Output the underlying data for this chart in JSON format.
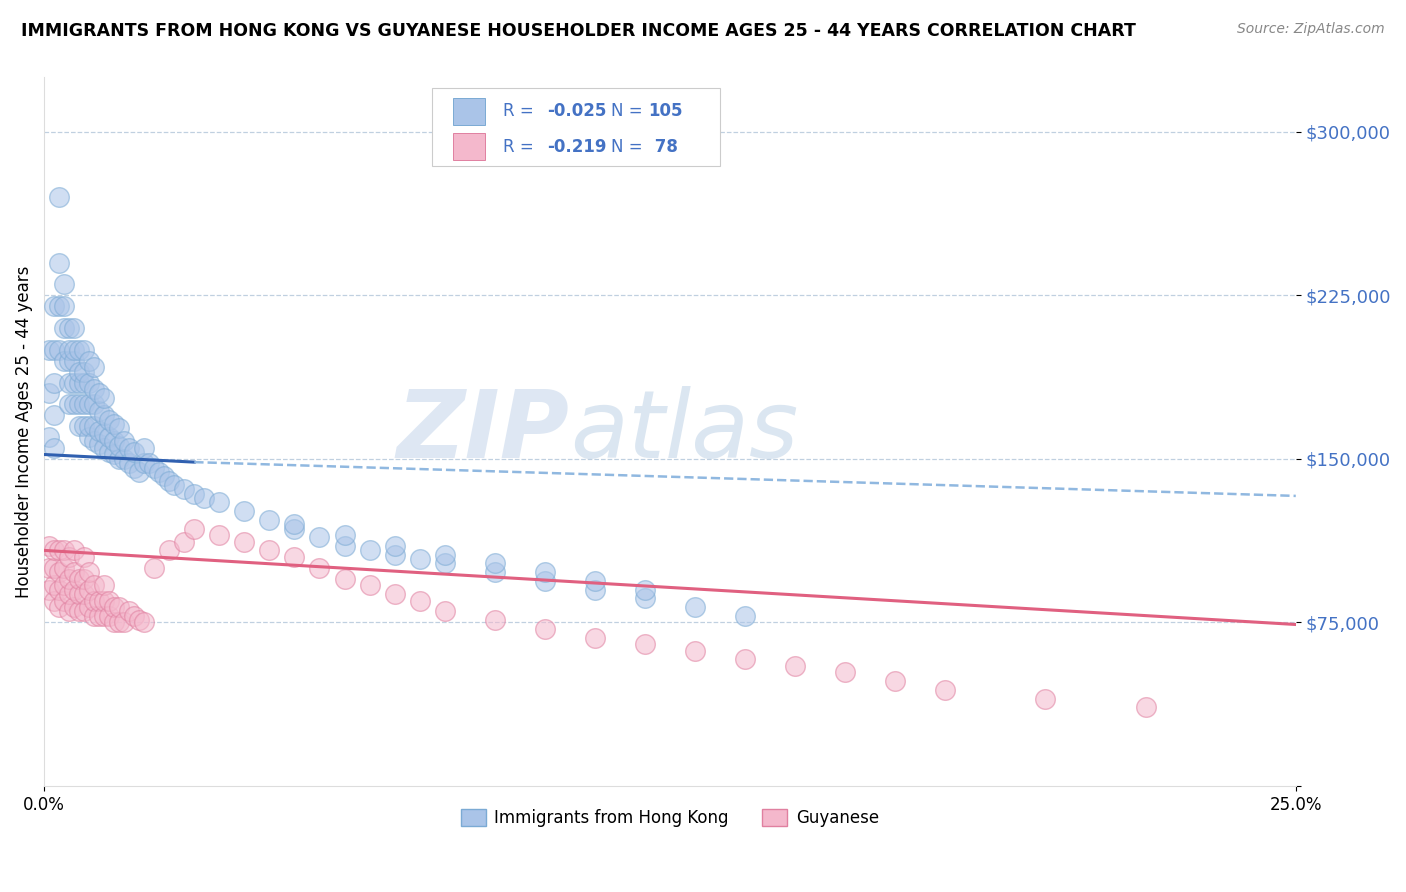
{
  "title": "IMMIGRANTS FROM HONG KONG VS GUYANESE HOUSEHOLDER INCOME AGES 25 - 44 YEARS CORRELATION CHART",
  "source": "Source: ZipAtlas.com",
  "ylabel": "Householder Income Ages 25 - 44 years",
  "xlim": [
    0.0,
    0.25
  ],
  "ylim": [
    0,
    325000
  ],
  "yticks": [
    0,
    75000,
    150000,
    225000,
    300000
  ],
  "ytick_labels": [
    "",
    "$75,000",
    "$150,000",
    "$225,000",
    "$300,000"
  ],
  "watermark_zip": "ZIP",
  "watermark_atlas": "atlas",
  "legend_text_color": "#4472c4",
  "series1_color": "#aac4e8",
  "series1_edge": "#7baad4",
  "series2_color": "#f4b8cc",
  "series2_edge": "#e080a0",
  "trendline1_solid_color": "#3060b0",
  "trendline1_dash_color": "#90b8e0",
  "trendline2_color": "#e06080",
  "grid_color": "#c0d0e0",
  "background_color": "#ffffff",
  "hk_x": [
    0.001,
    0.001,
    0.001,
    0.002,
    0.002,
    0.002,
    0.002,
    0.002,
    0.003,
    0.003,
    0.003,
    0.003,
    0.004,
    0.004,
    0.004,
    0.004,
    0.005,
    0.005,
    0.005,
    0.005,
    0.005,
    0.006,
    0.006,
    0.006,
    0.006,
    0.006,
    0.007,
    0.007,
    0.007,
    0.007,
    0.007,
    0.008,
    0.008,
    0.008,
    0.008,
    0.008,
    0.009,
    0.009,
    0.009,
    0.009,
    0.009,
    0.01,
    0.01,
    0.01,
    0.01,
    0.01,
    0.011,
    0.011,
    0.011,
    0.011,
    0.012,
    0.012,
    0.012,
    0.012,
    0.013,
    0.013,
    0.013,
    0.014,
    0.014,
    0.014,
    0.015,
    0.015,
    0.015,
    0.016,
    0.016,
    0.017,
    0.017,
    0.018,
    0.018,
    0.019,
    0.02,
    0.02,
    0.021,
    0.022,
    0.023,
    0.024,
    0.025,
    0.026,
    0.028,
    0.03,
    0.032,
    0.035,
    0.04,
    0.045,
    0.05,
    0.055,
    0.06,
    0.065,
    0.07,
    0.075,
    0.08,
    0.09,
    0.1,
    0.11,
    0.12,
    0.13,
    0.14,
    0.05,
    0.06,
    0.07,
    0.08,
    0.09,
    0.1,
    0.11,
    0.12
  ],
  "hk_y": [
    160000,
    180000,
    200000,
    155000,
    170000,
    185000,
    200000,
    220000,
    200000,
    220000,
    240000,
    270000,
    195000,
    210000,
    220000,
    230000,
    175000,
    185000,
    195000,
    200000,
    210000,
    175000,
    185000,
    195000,
    200000,
    210000,
    165000,
    175000,
    185000,
    190000,
    200000,
    165000,
    175000,
    185000,
    190000,
    200000,
    160000,
    165000,
    175000,
    185000,
    195000,
    158000,
    165000,
    175000,
    182000,
    192000,
    157000,
    163000,
    172000,
    180000,
    155000,
    162000,
    170000,
    178000,
    153000,
    160000,
    168000,
    152000,
    158000,
    166000,
    150000,
    156000,
    164000,
    150000,
    158000,
    148000,
    155000,
    146000,
    153000,
    144000,
    148000,
    155000,
    148000,
    146000,
    144000,
    142000,
    140000,
    138000,
    136000,
    134000,
    132000,
    130000,
    126000,
    122000,
    118000,
    114000,
    110000,
    108000,
    106000,
    104000,
    102000,
    98000,
    94000,
    90000,
    86000,
    82000,
    78000,
    120000,
    115000,
    110000,
    106000,
    102000,
    98000,
    94000,
    90000
  ],
  "gy_x": [
    0.001,
    0.001,
    0.001,
    0.002,
    0.002,
    0.002,
    0.002,
    0.003,
    0.003,
    0.003,
    0.003,
    0.004,
    0.004,
    0.004,
    0.004,
    0.005,
    0.005,
    0.005,
    0.005,
    0.006,
    0.006,
    0.006,
    0.006,
    0.007,
    0.007,
    0.007,
    0.008,
    0.008,
    0.008,
    0.008,
    0.009,
    0.009,
    0.009,
    0.01,
    0.01,
    0.01,
    0.011,
    0.011,
    0.012,
    0.012,
    0.012,
    0.013,
    0.013,
    0.014,
    0.014,
    0.015,
    0.015,
    0.016,
    0.017,
    0.018,
    0.019,
    0.02,
    0.022,
    0.025,
    0.028,
    0.03,
    0.035,
    0.04,
    0.045,
    0.05,
    0.055,
    0.06,
    0.065,
    0.07,
    0.075,
    0.08,
    0.09,
    0.1,
    0.11,
    0.12,
    0.13,
    0.14,
    0.15,
    0.16,
    0.17,
    0.18,
    0.2,
    0.22
  ],
  "gy_y": [
    90000,
    100000,
    110000,
    85000,
    92000,
    100000,
    108000,
    82000,
    90000,
    98000,
    108000,
    85000,
    92000,
    100000,
    108000,
    80000,
    88000,
    95000,
    105000,
    82000,
    90000,
    98000,
    108000,
    80000,
    88000,
    95000,
    80000,
    88000,
    95000,
    105000,
    82000,
    90000,
    98000,
    78000,
    85000,
    92000,
    78000,
    85000,
    78000,
    85000,
    92000,
    78000,
    85000,
    75000,
    82000,
    75000,
    82000,
    75000,
    80000,
    78000,
    76000,
    75000,
    100000,
    108000,
    112000,
    118000,
    115000,
    112000,
    108000,
    105000,
    100000,
    95000,
    92000,
    88000,
    85000,
    80000,
    76000,
    72000,
    68000,
    65000,
    62000,
    58000,
    55000,
    52000,
    48000,
    44000,
    40000,
    36000
  ],
  "hk_trend_x0": 0.0,
  "hk_trend_x_break": 0.03,
  "hk_trend_x1": 0.25,
  "hk_trend_y0": 152000,
  "hk_trend_y_break": 148500,
  "hk_trend_y1": 133000,
  "gy_trend_x0": 0.0,
  "gy_trend_x1": 0.25,
  "gy_trend_y0": 108000,
  "gy_trend_y1": 74000
}
